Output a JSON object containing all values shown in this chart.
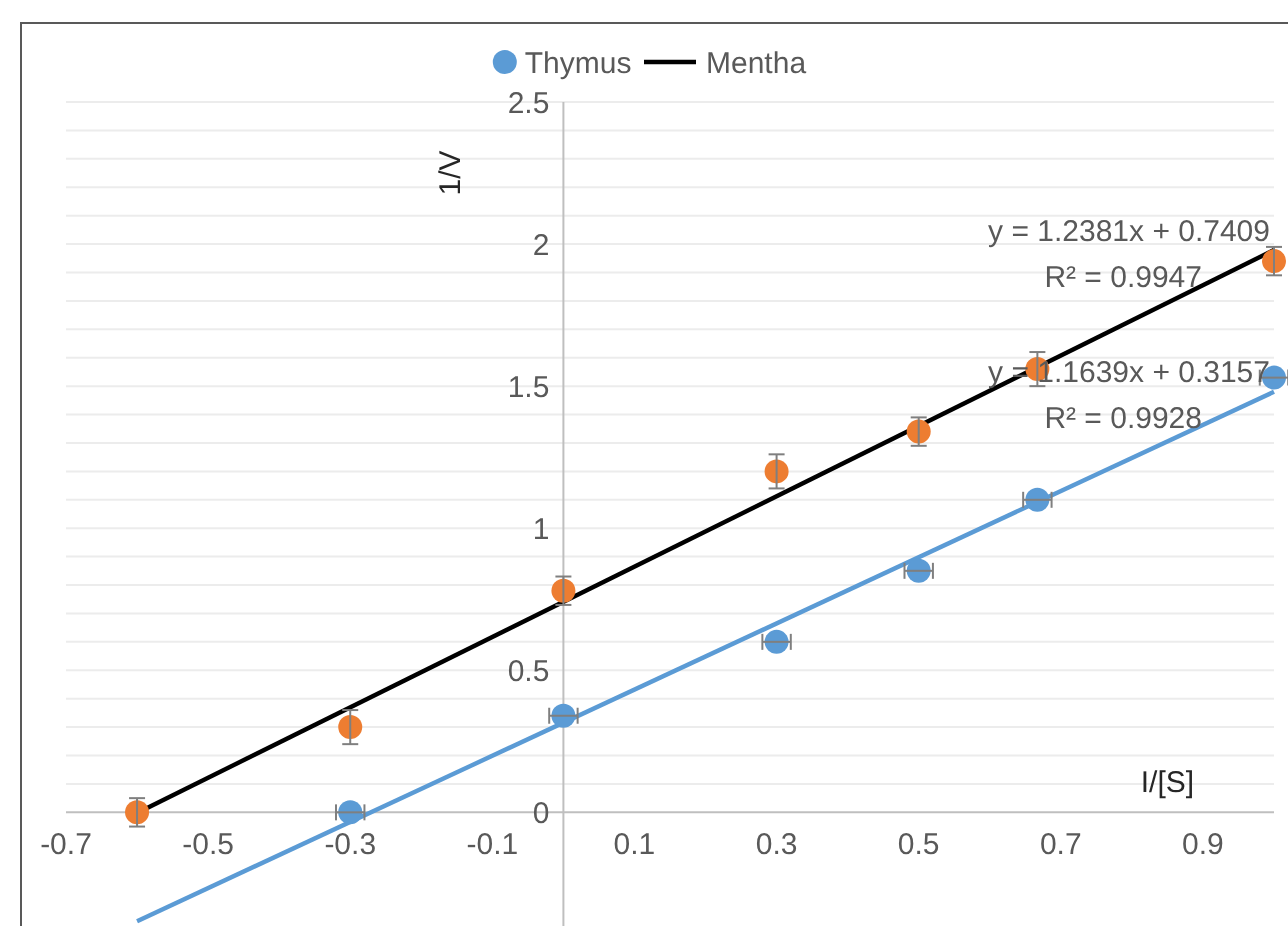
{
  "chart_data": {
    "type": "scatter",
    "xlabel": "I/[S]",
    "ylabel": "1/V",
    "xlim": [
      -0.7,
      1.0
    ],
    "xticks": [
      -0.7,
      -0.5,
      -0.3,
      -0.1,
      0.1,
      0.3,
      0.5,
      0.7,
      0.9
    ],
    "ylim": [
      -0.4,
      2.5
    ],
    "yticks": [
      0,
      {
        "value": 0.1,
        "label": null
      },
      {
        "value": 0.2,
        "label": null
      },
      {
        "value": 0.3,
        "label": null
      },
      {
        "value": 0.4,
        "label": null
      },
      0.5,
      {
        "value": 0.6,
        "label": null
      },
      {
        "value": 0.7,
        "label": null
      },
      {
        "value": 0.8,
        "label": null
      },
      {
        "value": 0.9,
        "label": null
      },
      1,
      {
        "value": 1.1,
        "label": null
      },
      {
        "value": 1.2,
        "label": null
      },
      {
        "value": 1.3,
        "label": null
      },
      {
        "value": 1.4,
        "label": null
      },
      1.5,
      {
        "value": 1.6,
        "label": null
      },
      {
        "value": 1.7,
        "label": null
      },
      {
        "value": 1.8,
        "label": null
      },
      {
        "value": 1.9,
        "label": null
      },
      2,
      {
        "value": 2.1,
        "label": null
      },
      {
        "value": 2.2,
        "label": null
      },
      {
        "value": 2.3,
        "label": null
      },
      {
        "value": 2.4,
        "label": null
      },
      2.5
    ],
    "grid": "y",
    "legend": "top",
    "series": [
      {
        "name": "Thymus",
        "color": "#5b9bd5",
        "marker": "circle",
        "x": [
          -0.3,
          0,
          0.3,
          0.5,
          0.667,
          1.0
        ],
        "values": [
          0,
          0.34,
          0.6,
          0.85,
          1.1,
          1.53
        ],
        "xerrors": [
          0.02,
          0.02,
          0.02,
          0.02,
          0.02,
          0.02
        ]
      },
      {
        "type": "line",
        "name": "Mentha",
        "color": "#000000",
        "x": [
          -0.6,
          1.0
        ],
        "values": [
          -0.002,
          1.979
        ]
      },
      {
        "type": "line",
        "color": "#5b9bd5",
        "x": [
          -0.6,
          1.0
        ],
        "values": [
          -0.383,
          1.48
        ]
      },
      {
        "color": "#ed7d31",
        "marker": "circle",
        "x": [
          -0.6,
          -0.3,
          0,
          0.3,
          0.5,
          0.667,
          1.0
        ],
        "values": [
          0,
          0.3,
          0.78,
          1.2,
          1.34,
          1.56,
          1.94
        ],
        "errors": [
          0.05,
          0.06,
          0.05,
          0.06,
          0.05,
          0.06,
          0.05
        ]
      }
    ],
    "annotations": [
      "y = 1.2381x + 0.7409",
      "R² = 0.9947",
      "y = 1.1639x + 0.3157",
      "R² = 0.9928"
    ]
  }
}
